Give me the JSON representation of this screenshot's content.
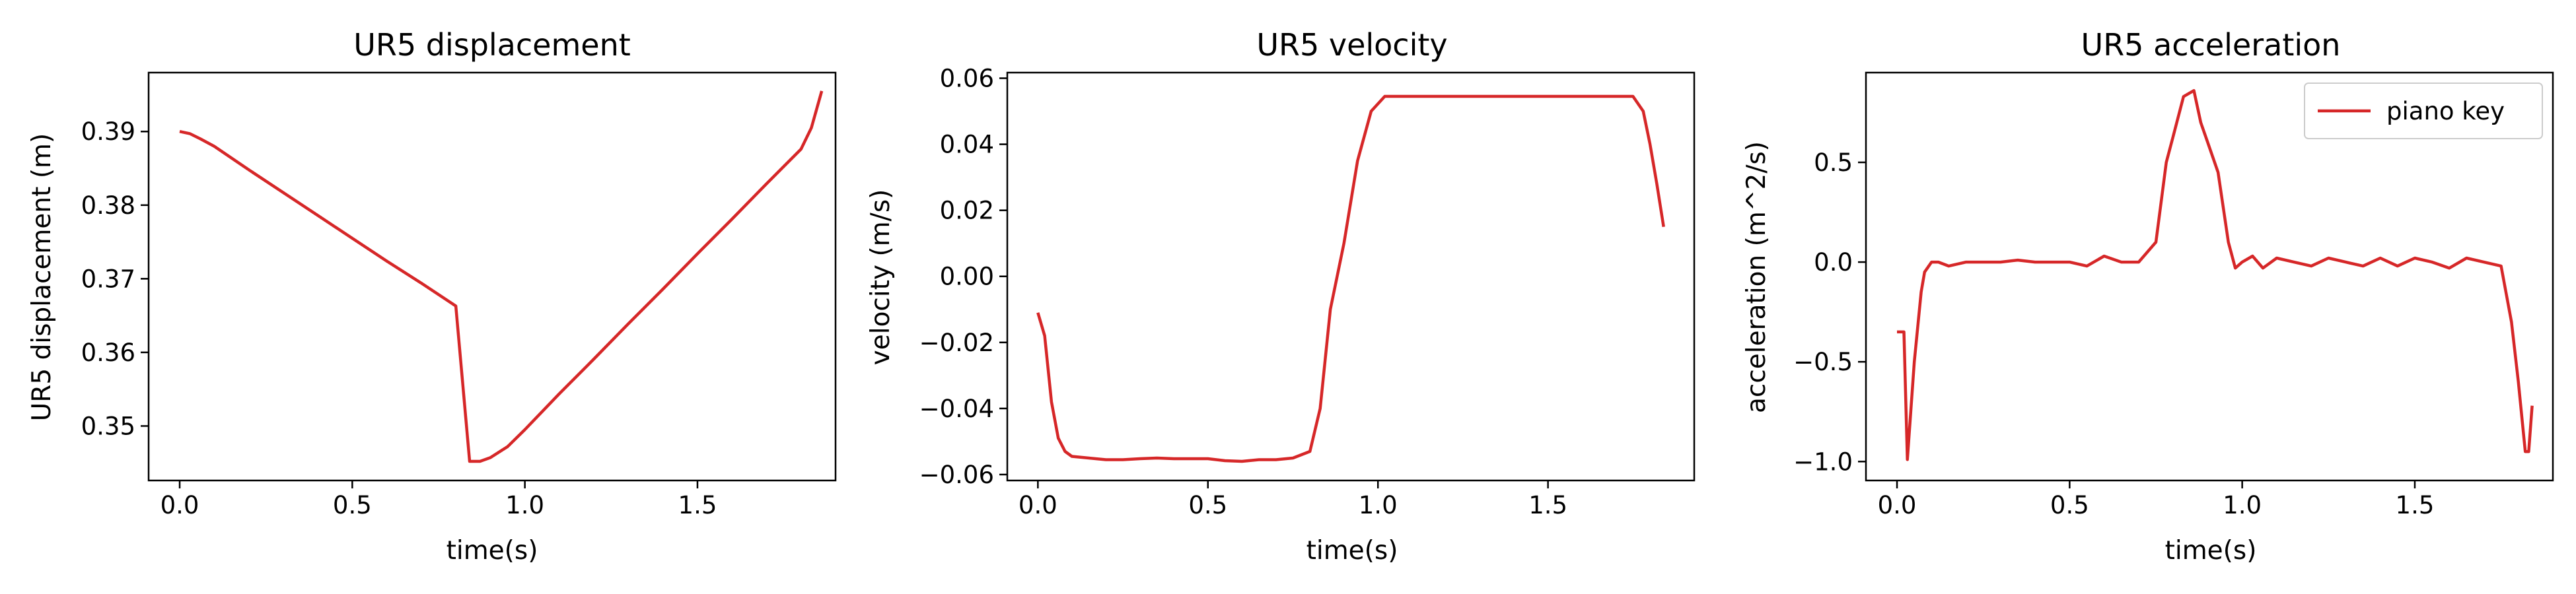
{
  "colors": {
    "series": "#d62728",
    "axes": "#000000",
    "background": "#ffffff"
  },
  "chart_data": [
    {
      "type": "line",
      "title": "UR5 displacement",
      "xlabel": "time(s)",
      "ylabel": "UR5 displacement (m)",
      "xlim": [
        -0.09,
        1.9
      ],
      "ylim": [
        0.3426,
        0.398
      ],
      "xticks": [
        0.0,
        0.5,
        1.0,
        1.5
      ],
      "xtick_labels": [
        "0.0",
        "0.5",
        "1.0",
        "1.5"
      ],
      "yticks": [
        0.35,
        0.36,
        0.37,
        0.38,
        0.39
      ],
      "ytick_labels": [
        "0.35",
        "0.36",
        "0.37",
        "0.38",
        "0.39"
      ],
      "grid": false,
      "series": [
        {
          "color": "#d62728",
          "x": [
            0.0,
            0.03,
            0.06,
            0.1,
            0.2,
            0.3,
            0.4,
            0.5,
            0.6,
            0.7,
            0.8,
            0.84,
            0.87,
            0.9,
            0.95,
            1.0,
            1.1,
            1.2,
            1.3,
            1.4,
            1.5,
            1.6,
            1.7,
            1.8,
            1.83,
            1.86
          ],
          "y": [
            0.39,
            0.3897,
            0.389,
            0.388,
            0.3848,
            0.3817,
            0.3786,
            0.3755,
            0.3724,
            0.3694,
            0.3663,
            0.3452,
            0.3452,
            0.3457,
            0.3472,
            0.3495,
            0.3544,
            0.3591,
            0.3639,
            0.3686,
            0.3734,
            0.3781,
            0.3829,
            0.3876,
            0.3905,
            0.3955
          ]
        }
      ]
    },
    {
      "type": "line",
      "title": "UR5 velocity",
      "xlabel": "time(s)",
      "ylabel": "velocity (m/s)",
      "xlim": [
        -0.09,
        1.93
      ],
      "ylim": [
        -0.0618,
        0.0617
      ],
      "xticks": [
        0.0,
        0.5,
        1.0,
        1.5
      ],
      "xtick_labels": [
        "0.0",
        "0.5",
        "1.0",
        "1.5"
      ],
      "yticks": [
        -0.06,
        -0.04,
        -0.02,
        0.0,
        0.02,
        0.04,
        0.06
      ],
      "ytick_labels": [
        "−0.06",
        "−0.04",
        "−0.02",
        "0.00",
        "0.02",
        "0.04",
        "0.06"
      ],
      "grid": false,
      "series": [
        {
          "color": "#d62728",
          "x": [
            0.0,
            0.02,
            0.04,
            0.06,
            0.08,
            0.1,
            0.15,
            0.2,
            0.25,
            0.3,
            0.35,
            0.4,
            0.45,
            0.5,
            0.55,
            0.6,
            0.65,
            0.7,
            0.75,
            0.8,
            0.83,
            0.86,
            0.9,
            0.94,
            0.98,
            1.02,
            1.1,
            1.2,
            1.3,
            1.4,
            1.5,
            1.6,
            1.7,
            1.75,
            1.78,
            1.8,
            1.82,
            1.84
          ],
          "y": [
            -0.011,
            -0.018,
            -0.038,
            -0.049,
            -0.053,
            -0.0545,
            -0.055,
            -0.0555,
            -0.0555,
            -0.0552,
            -0.055,
            -0.0552,
            -0.0552,
            -0.0552,
            -0.0558,
            -0.056,
            -0.0555,
            -0.0555,
            -0.055,
            -0.053,
            -0.04,
            -0.01,
            0.01,
            0.035,
            0.05,
            0.0545,
            0.0545,
            0.0545,
            0.0545,
            0.0545,
            0.0545,
            0.0545,
            0.0545,
            0.0545,
            0.05,
            0.04,
            0.028,
            0.015
          ]
        }
      ]
    },
    {
      "type": "line",
      "title": "UR5 acceleration",
      "xlabel": "time(s)",
      "ylabel": "acceleration (m^2/s)",
      "xlim": [
        -0.09,
        1.9
      ],
      "ylim": [
        -1.095,
        0.95
      ],
      "xticks": [
        0.0,
        0.5,
        1.0,
        1.5
      ],
      "xtick_labels": [
        "0.0",
        "0.5",
        "1.0",
        "1.5"
      ],
      "yticks": [
        -1.0,
        -0.5,
        0.0,
        0.5
      ],
      "ytick_labels": [
        "−1.0",
        "−0.5",
        "0.0",
        "0.5"
      ],
      "grid": false,
      "legend": {
        "placement": "upper right",
        "entries": [
          "piano key"
        ]
      },
      "series": [
        {
          "name": "piano key",
          "color": "#d62728",
          "x": [
            0.0,
            0.02,
            0.03,
            0.05,
            0.07,
            0.08,
            0.1,
            0.12,
            0.15,
            0.2,
            0.25,
            0.3,
            0.35,
            0.4,
            0.45,
            0.5,
            0.55,
            0.6,
            0.65,
            0.7,
            0.75,
            0.78,
            0.8,
            0.83,
            0.86,
            0.88,
            0.9,
            0.93,
            0.96,
            0.98,
            1.0,
            1.03,
            1.06,
            1.1,
            1.15,
            1.2,
            1.25,
            1.3,
            1.35,
            1.4,
            1.45,
            1.5,
            1.55,
            1.6,
            1.65,
            1.7,
            1.75,
            1.78,
            1.8,
            1.82,
            1.83,
            1.84
          ],
          "y": [
            -0.35,
            -0.35,
            -0.99,
            -0.5,
            -0.15,
            -0.05,
            0.0,
            0.0,
            -0.02,
            0.0,
            0.0,
            0.0,
            0.01,
            0.0,
            0.0,
            0.0,
            -0.02,
            0.03,
            0.0,
            0.0,
            0.1,
            0.5,
            0.63,
            0.83,
            0.86,
            0.7,
            0.6,
            0.45,
            0.1,
            -0.03,
            0.0,
            0.03,
            -0.03,
            0.02,
            0.0,
            -0.02,
            0.02,
            0.0,
            -0.02,
            0.02,
            -0.02,
            0.02,
            0.0,
            -0.03,
            0.02,
            0.0,
            -0.02,
            -0.3,
            -0.6,
            -0.95,
            -0.95,
            -0.72
          ]
        }
      ]
    }
  ]
}
